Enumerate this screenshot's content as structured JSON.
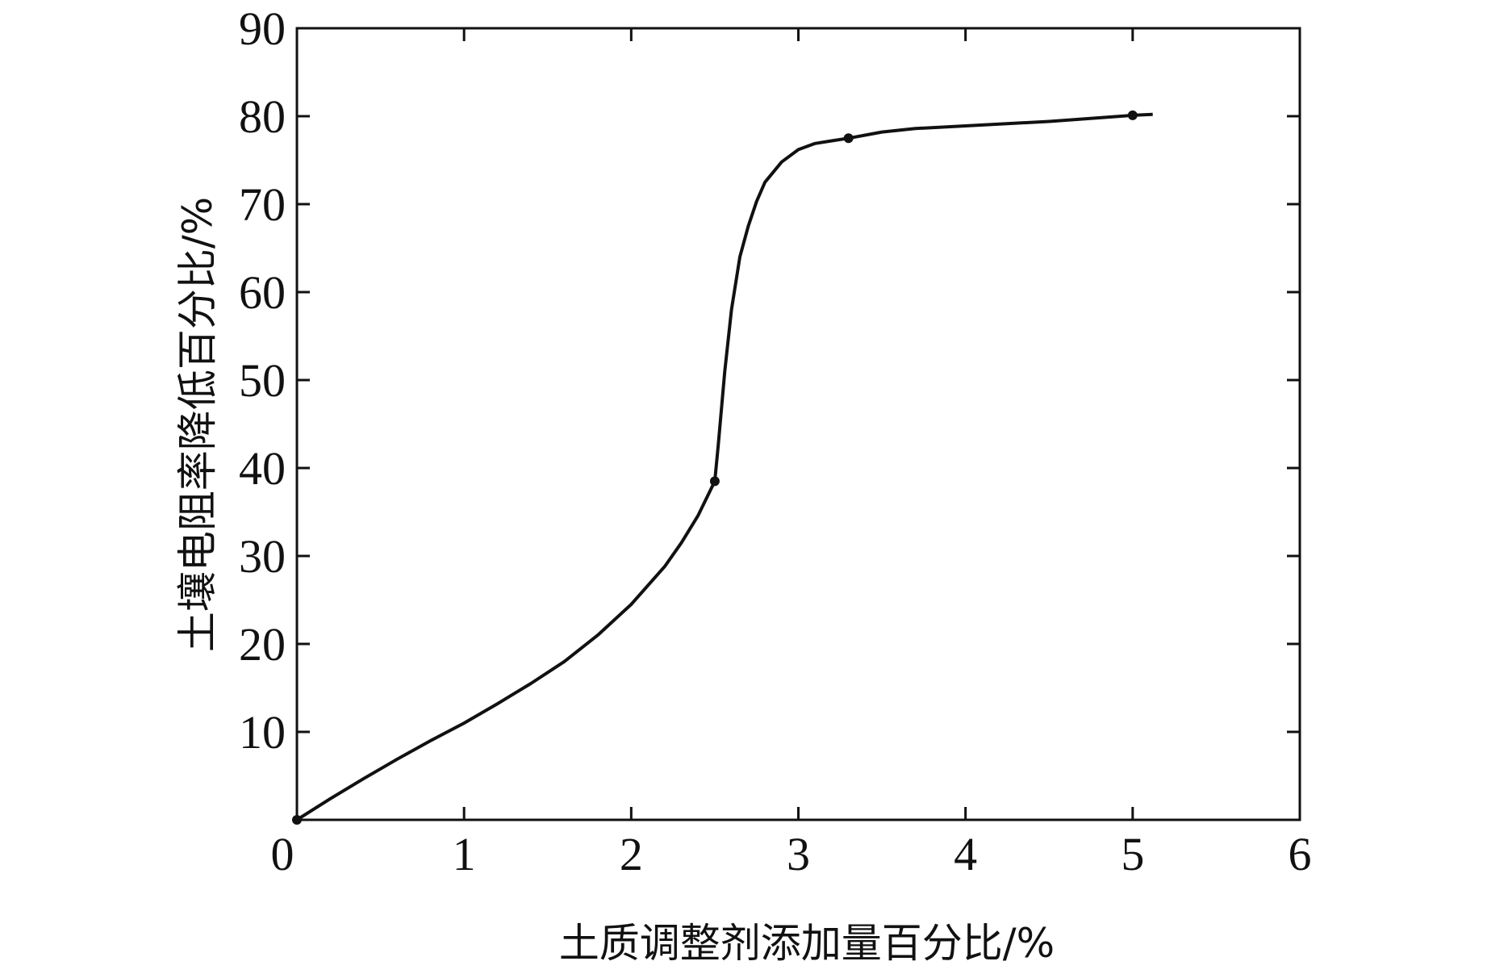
{
  "chart_data": {
    "type": "line",
    "title": "",
    "xlabel": "土质调整剂添加量百分比/%",
    "ylabel": "土壤电阻率降低百分比/%",
    "xlim": [
      0,
      6
    ],
    "ylim": [
      0,
      90
    ],
    "x_ticks": [
      "0",
      "1",
      "2",
      "3",
      "4",
      "5",
      "6"
    ],
    "y_ticks": [
      "10",
      "20",
      "30",
      "40",
      "50",
      "60",
      "70",
      "80",
      "90"
    ],
    "grid": false,
    "series": [
      {
        "name": "",
        "x": [
          0,
          0.2,
          0.4,
          0.6,
          0.8,
          1.0,
          1.2,
          1.4,
          1.6,
          1.8,
          2.0,
          2.2,
          2.3,
          2.4,
          2.5,
          2.52,
          2.56,
          2.6,
          2.65,
          2.7,
          2.75,
          2.8,
          2.9,
          3.0,
          3.1,
          3.2,
          3.3,
          3.5,
          3.7,
          4.0,
          4.5,
          5.0,
          5.12
        ],
        "y": [
          0,
          2.4,
          4.7,
          6.9,
          9.0,
          11.0,
          13.2,
          15.5,
          18.0,
          21.0,
          24.5,
          28.8,
          31.5,
          34.6,
          38.5,
          42.5,
          51.0,
          58.0,
          64.0,
          67.5,
          70.3,
          72.5,
          74.8,
          76.2,
          76.9,
          77.2,
          77.5,
          78.2,
          78.6,
          78.9,
          79.4,
          80.1,
          80.2
        ]
      }
    ],
    "markers": [
      {
        "x": 0,
        "y": 0
      },
      {
        "x": 2.5,
        "y": 38.5
      },
      {
        "x": 3.3,
        "y": 77.5
      },
      {
        "x": 5.0,
        "y": 80.1
      }
    ]
  }
}
